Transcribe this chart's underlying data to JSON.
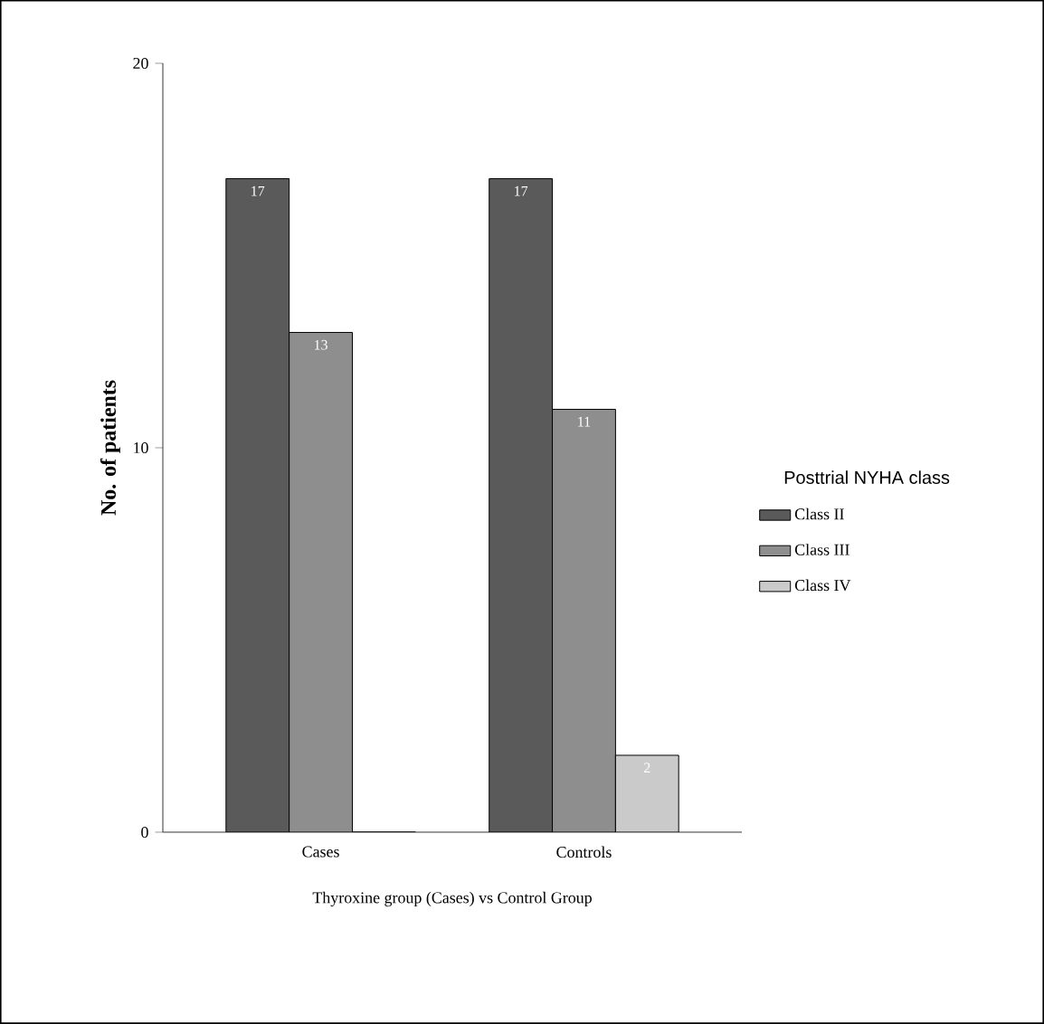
{
  "chart_data": {
    "type": "bar",
    "xlabel": "Thyroxine group (Cases) vs Control Group",
    "ylabel": "No. of patients",
    "legend_title": "Posttrial NYHA class",
    "categories": [
      "Cases",
      "Controls"
    ],
    "series": [
      {
        "name": "Class II",
        "color": "#5a5a5a",
        "values": [
          17,
          17
        ],
        "value_labels": [
          "17",
          "17"
        ]
      },
      {
        "name": "Class III",
        "color": "#8e8e8e",
        "values": [
          13,
          11
        ],
        "value_labels": [
          "13",
          "11"
        ]
      },
      {
        "name": "Class IV",
        "color": "#cacaca",
        "values": [
          0,
          2
        ],
        "value_labels": [
          null,
          "2"
        ]
      }
    ],
    "ylim": [
      0,
      20
    ],
    "yticks": [
      0,
      10,
      20
    ],
    "legend": "right",
    "grid": false
  }
}
